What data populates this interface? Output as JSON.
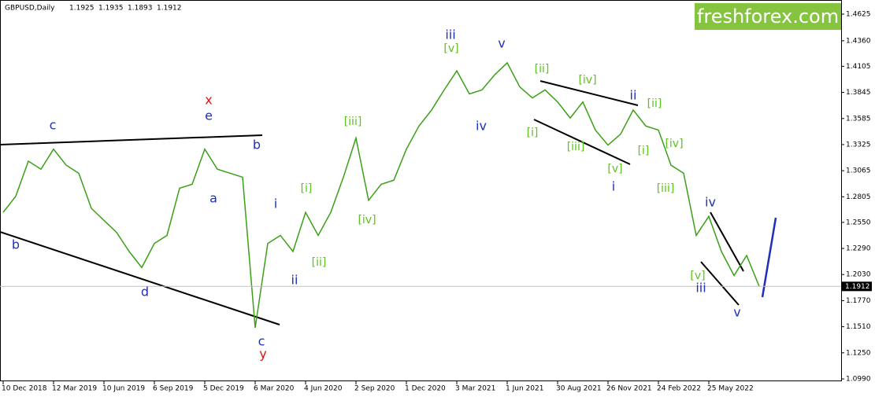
{
  "logo": "freshforex.com",
  "annotations": [
    "c",
    "x",
    "e",
    "b",
    "a",
    "b",
    "d",
    "c",
    "y",
    "i",
    "ii",
    "[i]",
    "[ii]",
    "[iii]",
    "[iv]",
    "iii",
    "[v]",
    "iv",
    "v",
    "[ii]",
    "[iv]",
    "ii",
    "[ii]",
    "[i]",
    "[iii]",
    "[v]",
    "i",
    "[i]",
    "[iv]",
    "[iii]",
    "iv",
    "[v]",
    "iii",
    "v"
  ],
  "chart_data": {
    "type": "line",
    "title": "GBPUSD,Daily",
    "ohlc": [
      1.1925,
      1.1935,
      1.1893,
      1.1912
    ],
    "categories": [
      "10 Dec 2018",
      null,
      null,
      null,
      "12 Mar 2019",
      null,
      null,
      null,
      "10 Jun 2019",
      null,
      null,
      null,
      "6 Sep 2019",
      null,
      null,
      null,
      "5 Dec 2019",
      null,
      null,
      null,
      "6 Mar 2020",
      null,
      null,
      null,
      "4 Jun 2020",
      null,
      null,
      null,
      "2 Sep 2020",
      null,
      null,
      null,
      "1 Dec 2020",
      null,
      null,
      null,
      "3 Mar 2021",
      null,
      null,
      null,
      "1 Jun 2021",
      null,
      null,
      null,
      "30 Aug 2021",
      null,
      null,
      null,
      "26 Nov 2021",
      null,
      null,
      null,
      "24 Feb 2022",
      null,
      null,
      null,
      "25 May 2022",
      null,
      null,
      null,
      null
    ],
    "values": [
      1.265,
      1.281,
      1.316,
      1.308,
      1.328,
      1.312,
      1.304,
      1.269,
      1.257,
      1.245,
      1.226,
      1.21,
      1.234,
      1.242,
      1.289,
      1.293,
      1.328,
      1.308,
      1.304,
      1.3,
      1.15,
      1.234,
      1.242,
      1.226,
      1.265,
      1.242,
      1.265,
      1.3,
      1.339,
      1.277,
      1.293,
      1.297,
      1.328,
      1.351,
      1.367,
      1.387,
      1.406,
      1.383,
      1.387,
      1.402,
      1.414,
      1.39,
      1.379,
      1.387,
      1.375,
      1.359,
      1.375,
      1.347,
      1.332,
      1.343,
      1.367,
      1.351,
      1.347,
      1.312,
      1.304,
      1.242,
      1.261,
      1.226,
      1.202,
      1.222,
      1.1912
    ],
    "color": "#3aa016",
    "current_price": 1.1912,
    "ylim": [
      1.099,
      1.4625
    ],
    "yticks": [
      1.4625,
      {
        "value": 1.436,
        "label": "1.4360"
      },
      1.4105,
      1.3845,
      1.3585,
      1.3325,
      1.3065,
      1.2805,
      {
        "value": 1.255,
        "label": "1.2550"
      },
      {
        "value": 1.229,
        "label": "1.2290"
      },
      {
        "value": 1.203,
        "label": "1.2030"
      },
      {
        "value": 1.177,
        "label": "1.1770"
      },
      {
        "value": 1.151,
        "label": "1.1510"
      },
      {
        "value": 1.125,
        "label": "1.1250"
      },
      {
        "value": 1.099,
        "label": "1.0990"
      }
    ]
  }
}
